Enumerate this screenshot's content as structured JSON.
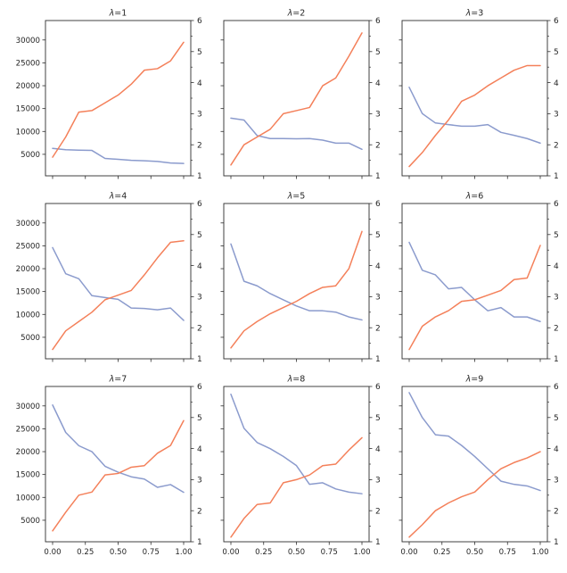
{
  "figure": {
    "background": "#ffffff",
    "axis_color": "#2e2e2e",
    "text_color": "#262626"
  },
  "chart_data": {
    "type": "line",
    "grid": {
      "rows": 3,
      "cols": 3
    },
    "x": [
      0,
      0.1,
      0.2,
      0.3,
      0.4,
      0.5,
      0.6,
      0.7,
      0.8,
      0.9,
      1.0
    ],
    "x_axis": {
      "tick_values": [
        0,
        0.25,
        0.5,
        0.75,
        1.0
      ],
      "tick_labels": [
        "0.00",
        "0.25",
        "0.50",
        "0.75",
        "1.00"
      ],
      "labels_on": "bottom-row-only",
      "range": [
        -0.05,
        1.05
      ]
    },
    "left_axis": {
      "tick_values": [
        5000,
        10000,
        15000,
        20000,
        25000,
        30000
      ],
      "tick_labels": [
        "5000",
        "10000",
        "15000",
        "20000",
        "25000",
        "30000"
      ],
      "labels_on": "first-column-only",
      "range": [
        300,
        34250
      ]
    },
    "right_axis": {
      "tick_values": [
        1,
        2,
        3,
        4,
        5,
        6
      ],
      "tick_labels": [
        "1",
        "2",
        "3",
        "4",
        "5",
        "6"
      ],
      "minor_tick_values": [
        1.5,
        2.5,
        3.5,
        4.5,
        5.5
      ],
      "labels_on": "all",
      "range": [
        1,
        6
      ]
    },
    "series_colors": {
      "left_series": "#8b9bcd",
      "right_series": "#f4805a"
    },
    "legend": "none",
    "subplots": [
      {
        "title": "λ=1",
        "left_values": [
          6300,
          6000,
          5900,
          5850,
          4100,
          3900,
          3700,
          3600,
          3450,
          3100,
          3000
        ],
        "right_values": [
          1.6,
          2.25,
          3.05,
          3.1,
          3.35,
          3.6,
          3.95,
          4.4,
          4.45,
          4.7,
          5.3
        ]
      },
      {
        "title": "λ=2",
        "left_values": [
          12900,
          12500,
          9100,
          8450,
          8450,
          8400,
          8450,
          8100,
          7450,
          7450,
          6100
        ],
        "right_values": [
          1.35,
          2.0,
          2.25,
          2.5,
          3.0,
          3.1,
          3.2,
          3.9,
          4.15,
          4.85,
          5.6
        ]
      },
      {
        "title": "λ=3",
        "left_values": [
          19650,
          13900,
          11850,
          11500,
          11150,
          11150,
          11500,
          9800,
          9150,
          8450,
          7450
        ],
        "right_values": [
          1.3,
          1.75,
          2.3,
          2.8,
          3.4,
          3.6,
          3.9,
          4.15,
          4.4,
          4.55,
          4.55
        ]
      },
      {
        "title": "λ=4",
        "left_values": [
          24600,
          18900,
          17800,
          14100,
          13700,
          13300,
          11400,
          11300,
          11000,
          11400,
          8700
        ],
        "right_values": [
          1.3,
          1.9,
          2.2,
          2.5,
          2.9,
          3.05,
          3.2,
          3.7,
          4.25,
          4.75,
          4.8
        ]
      },
      {
        "title": "λ=5",
        "left_values": [
          25400,
          17250,
          16250,
          14550,
          13200,
          11850,
          10800,
          10800,
          10500,
          9450,
          8800
        ],
        "right_values": [
          1.35,
          1.9,
          2.2,
          2.45,
          2.65,
          2.85,
          3.1,
          3.3,
          3.35,
          3.9,
          5.1
        ]
      },
      {
        "title": "λ=6",
        "left_values": [
          25750,
          19650,
          18650,
          15600,
          15900,
          13200,
          10800,
          11500,
          9450,
          9450,
          8450
        ],
        "right_values": [
          1.3,
          2.05,
          2.35,
          2.55,
          2.85,
          2.9,
          3.05,
          3.2,
          3.55,
          3.6,
          4.65
        ]
      },
      {
        "title": "λ=7",
        "left_values": [
          30200,
          24200,
          21300,
          20000,
          16800,
          15500,
          14500,
          14000,
          12200,
          12800,
          11100
        ],
        "right_values": [
          1.35,
          1.95,
          2.5,
          2.6,
          3.15,
          3.2,
          3.4,
          3.45,
          3.85,
          4.1,
          4.9
        ]
      },
      {
        "title": "λ=8",
        "left_values": [
          32550,
          25100,
          22000,
          20650,
          18950,
          16950,
          12850,
          13200,
          11850,
          11150,
          10800
        ],
        "right_values": [
          1.15,
          1.75,
          2.2,
          2.25,
          2.9,
          3.0,
          3.15,
          3.45,
          3.5,
          3.95,
          4.35
        ]
      },
      {
        "title": "λ=9",
        "left_values": [
          32900,
          27450,
          23700,
          23400,
          21350,
          18950,
          16250,
          13550,
          12850,
          12500,
          11500
        ],
        "right_values": [
          1.15,
          1.55,
          2.0,
          2.25,
          2.45,
          2.6,
          3.0,
          3.35,
          3.55,
          3.7,
          3.9
        ]
      }
    ]
  }
}
